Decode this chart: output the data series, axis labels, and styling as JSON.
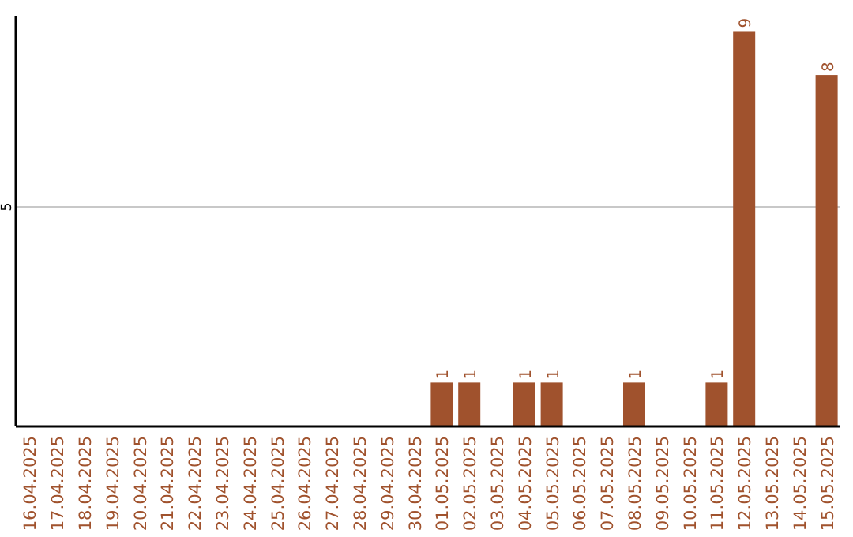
{
  "chart_data": {
    "type": "bar",
    "categories": [
      "16.04.2025",
      "17.04.2025",
      "18.04.2025",
      "19.04.2025",
      "20.04.2025",
      "21.04.2025",
      "22.04.2025",
      "23.04.2025",
      "24.04.2025",
      "25.04.2025",
      "26.04.2025",
      "27.04.2025",
      "28.04.2025",
      "29.04.2025",
      "30.04.2025",
      "01.05.2025",
      "02.05.2025",
      "03.05.2025",
      "04.05.2025",
      "05.05.2025",
      "06.05.2025",
      "07.05.2025",
      "08.05.2025",
      "09.05.2025",
      "10.05.2025",
      "11.05.2025",
      "12.05.2025",
      "13.05.2025",
      "14.05.2025",
      "15.05.2025"
    ],
    "values": [
      null,
      null,
      null,
      null,
      null,
      null,
      null,
      null,
      null,
      null,
      null,
      null,
      null,
      null,
      null,
      1,
      1,
      null,
      1,
      1,
      null,
      null,
      1,
      null,
      null,
      1,
      9,
      null,
      null,
      8
    ],
    "data_labels": true,
    "color": "#a0522d",
    "ylim": [
      0,
      9.35
    ],
    "yticks": [
      5
    ],
    "grid": "y"
  }
}
